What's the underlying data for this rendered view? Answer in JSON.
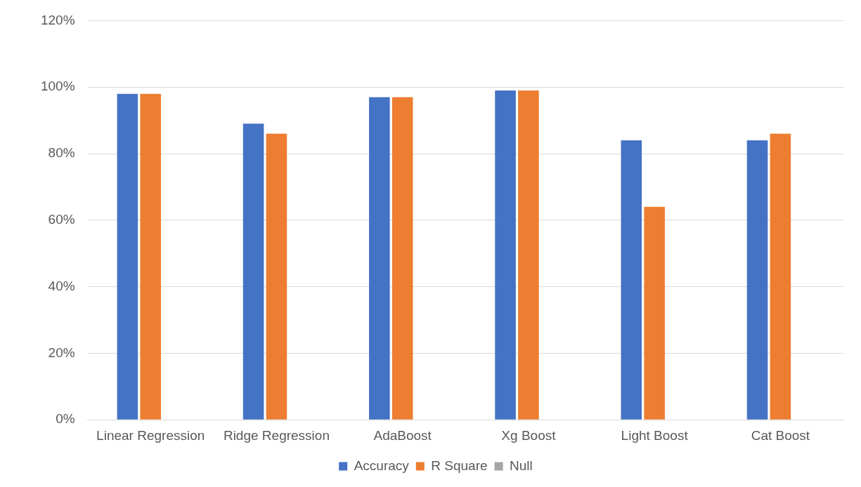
{
  "chart_data": {
    "type": "bar",
    "categories": [
      "Linear Regression",
      "Ridge Regression",
      "AdaBoost",
      "Xg Boost",
      "Light Boost",
      "Cat Boost"
    ],
    "series": [
      {
        "name": "Accuracy",
        "color": "#4472c4",
        "values": [
          98,
          89,
          97,
          99,
          84,
          84
        ]
      },
      {
        "name": "R Square",
        "color": "#ed7d31",
        "values": [
          98,
          86,
          97,
          99,
          64,
          86
        ]
      },
      {
        "name": "Null",
        "color": "#a5a5a5",
        "values": [
          null,
          null,
          null,
          null,
          null,
          null
        ]
      }
    ],
    "ylim": [
      0,
      120
    ],
    "yticks": [
      {
        "value": 0,
        "label": "0%"
      },
      {
        "value": 20,
        "label": "20%"
      },
      {
        "value": 40,
        "label": "40%"
      },
      {
        "value": 60,
        "label": "60%"
      },
      {
        "value": 80,
        "label": "80%"
      },
      {
        "value": 100,
        "label": "100%"
      },
      {
        "value": 120,
        "label": "120%"
      }
    ],
    "grid": "y",
    "legend": "bottom"
  }
}
